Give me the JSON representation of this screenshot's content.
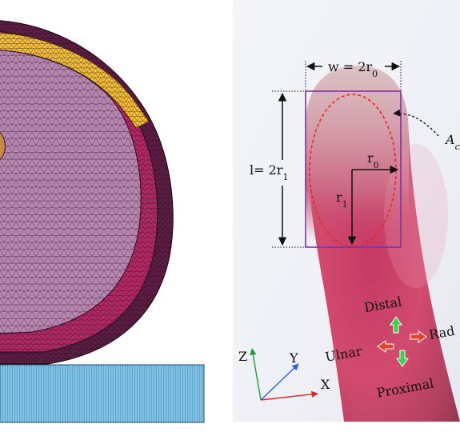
{
  "labels": {
    "width_pre": "w = 2r",
    "width_sub": "0",
    "length_pre": "l= 2r",
    "length_sub": "1",
    "r0_main": "r",
    "r0_sub": "0",
    "r1_main": "r",
    "r1_sub": "1",
    "area_main": "A",
    "area_sub": "c"
  },
  "directions": {
    "distal": "Distal",
    "proximal": "Proximal",
    "ulnar": "Ulnar",
    "radial": "Rad"
  },
  "axes": {
    "x": "X",
    "y": "Y",
    "z": "Z"
  },
  "colors": {
    "outer_layer": "#f5c038",
    "middle_layer": "#b52a66",
    "dark_layer": "#5e1d44",
    "inner_tissue": "#b887b1",
    "bone_core": "#c8884a",
    "base_plate": "#7fc2e6",
    "contact_box": "#7d2fa8",
    "contact_ellipse": "#e8261e",
    "axis_x": "#e02424",
    "axis_y": "#2a62d9",
    "axis_z": "#1e9e3a",
    "arrow_longitudinal": "#36d24a",
    "arrow_lateral": "#e0442b"
  }
}
